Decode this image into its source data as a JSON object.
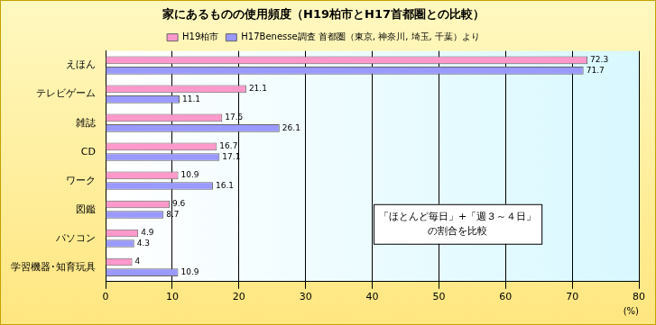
{
  "chart_data": {
    "type": "bar",
    "orientation": "horizontal",
    "title": "家にあるものの使用頻度（H19柏市とH17首都圏との比較）",
    "categories": [
      "えほん",
      "テレビゲーム",
      "雑誌",
      "CD",
      "ワーク",
      "図鑑",
      "パソコン",
      "学習機器･知育玩具"
    ],
    "series": [
      {
        "name": "H19柏市",
        "color": "#ff99cc",
        "values": [
          72.3,
          21.1,
          17.5,
          16.7,
          10.9,
          9.6,
          4.9,
          4.0
        ]
      },
      {
        "name": "H17Benesse調査 首都圏（東京, 神奈川, 埼玉, 千葉）より",
        "color": "#9999ff",
        "values": [
          71.7,
          11.1,
          26.1,
          17.1,
          16.1,
          8.7,
          4.3,
          10.9
        ]
      }
    ],
    "x_label": "(%)",
    "xlim": [
      0,
      80
    ],
    "xticks": [
      0,
      10,
      20,
      30,
      40,
      50,
      60,
      70,
      80
    ],
    "annotation": [
      "「ほとんど毎日」+「週３～４日」",
      "の割合を比較"
    ],
    "grid": true,
    "legend": "top",
    "data_labels": true
  }
}
